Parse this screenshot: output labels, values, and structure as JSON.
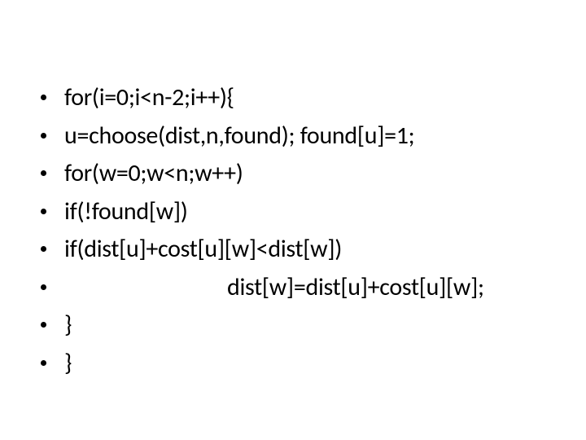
{
  "slide": {
    "background_color": "#ffffff",
    "text_color": "#000000",
    "bullet_color": "#000000",
    "font_family": "Calibri, Arial, sans-serif",
    "font_size": 30,
    "line_height": 1.35,
    "bullet_size": 7,
    "items": [
      {
        "text": "for(i=0;i<n-2;i++){",
        "indented": false
      },
      {
        "text": "u=choose(dist,n,found); found[u]=1;",
        "indented": false
      },
      {
        "text": "for(w=0;w<n;w++)",
        "indented": false
      },
      {
        "text": "if(!found[w])",
        "indented": false
      },
      {
        "text": "if(dist[u]+cost[u][w]<dist[w])",
        "indented": false
      },
      {
        "text": "dist[w]=dist[u]+cost[u][w];",
        "indented": true
      },
      {
        "text": "}",
        "indented": false
      },
      {
        "text": "}",
        "indented": false
      }
    ]
  }
}
